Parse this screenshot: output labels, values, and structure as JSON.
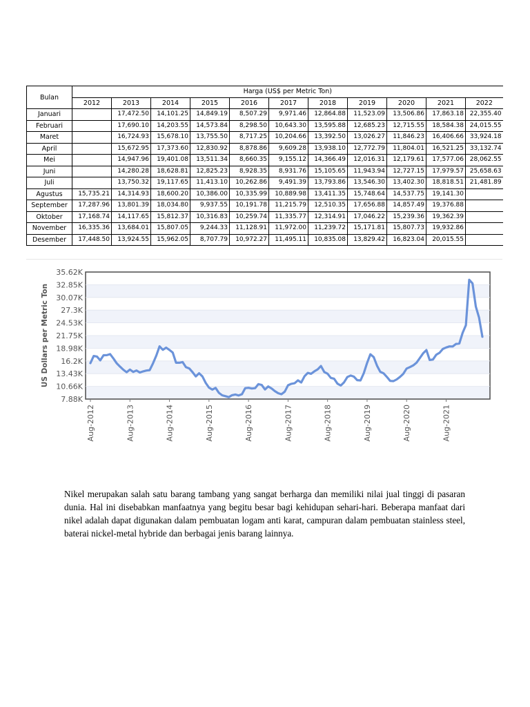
{
  "table": {
    "header_bulan": "Bulan",
    "header_price": "Harga (US$ per Metric Ton)",
    "years": [
      "2012",
      "2013",
      "2014",
      "2015",
      "2016",
      "2017",
      "2018",
      "2019",
      "2020",
      "2021",
      "2022"
    ],
    "rows": [
      {
        "month": "Januari",
        "values": [
          "",
          "17,472.50",
          "14,101.25",
          "14,849.19",
          "8,507.29",
          "9,971.46",
          "12,864.88",
          "11,523.09",
          "13,506.86",
          "17,863.18",
          "22,355.40"
        ]
      },
      {
        "month": "Februari",
        "values": [
          "",
          "17,690.10",
          "14,203.55",
          "14,573.84",
          "8,298.50",
          "10,643.30",
          "13,595.88",
          "12,685.23",
          "12,715.55",
          "18,584.38",
          "24,015.55"
        ]
      },
      {
        "month": "Maret",
        "values": [
          "",
          "16,724.93",
          "15,678.10",
          "13,755.50",
          "8,717.25",
          "10,204.66",
          "13,392.50",
          "13,026.27",
          "11,846.23",
          "16,406.66",
          "33,924.18"
        ]
      },
      {
        "month": "April",
        "values": [
          "",
          "15,672.95",
          "17,373.60",
          "12,830.92",
          "8,878.86",
          "9,609.28",
          "13,938.10",
          "12,772.79",
          "11,804.01",
          "16,521.25",
          "33,132.74"
        ]
      },
      {
        "month": "Mei",
        "values": [
          "",
          "14,947.96",
          "19,401.08",
          "13,511.34",
          "8,660.35",
          "9,155.12",
          "14,366.49",
          "12,016.31",
          "12,179.61",
          "17,577.06",
          "28,062.55"
        ]
      },
      {
        "month": "Juni",
        "values": [
          "",
          "14,280.28",
          "18,628.81",
          "12,825.23",
          "8,928.35",
          "8,931.76",
          "15,105.65",
          "11,943.94",
          "12,727.15",
          "17,979.57",
          "25,658.63"
        ]
      },
      {
        "month": "Juli",
        "values": [
          "",
          "13,750.32",
          "19,117.65",
          "11,413.10",
          "10,262.86",
          "9,491.39",
          "13,793.86",
          "13,546.30",
          "13,402.30",
          "18,818.51",
          "21,481.89"
        ]
      },
      {
        "month": "Agustus",
        "values": [
          "15,735.21",
          "14,314.93",
          "18,600.20",
          "10,386.00",
          "10,335.99",
          "10,889.98",
          "13,411.35",
          "15,748.64",
          "14,537.75",
          "19,141.30",
          ""
        ]
      },
      {
        "month": "September",
        "values": [
          "17,287.96",
          "13,801.39",
          "18,034.80",
          "9,937.55",
          "10,191.78",
          "11,215.79",
          "12,510.35",
          "17,656.88",
          "14,857.49",
          "19,376.88",
          ""
        ]
      },
      {
        "month": "Oktober",
        "values": [
          "17,168.74",
          "14,117.65",
          "15,812.37",
          "10,316.83",
          "10,259.74",
          "11,335.77",
          "12,314.91",
          "17,046.22",
          "15,239.36",
          "19,362.39",
          ""
        ]
      },
      {
        "month": "November",
        "values": [
          "16,335.36",
          "13,684.01",
          "15,807.05",
          "9,244.33",
          "11,128.91",
          "11,972.00",
          "11,239.72",
          "15,171.81",
          "15,807.73",
          "19,932.86",
          ""
        ]
      },
      {
        "month": "Desember",
        "values": [
          "17,448.50",
          "13,924.55",
          "15,962.05",
          "8,707.79",
          "10,972.27",
          "11,495.11",
          "10,835.08",
          "13,829.42",
          "16,823.04",
          "20,015.55",
          ""
        ]
      }
    ]
  },
  "chart_data": {
    "type": "line",
    "title": "",
    "xlabel": "",
    "ylabel": "US Dollars per Metric Ton",
    "ylim": [
      7.88,
      35.62
    ],
    "y_unit": "thousand US$ per metric ton",
    "yticks": [
      "35.62K",
      "32.85K",
      "30.07K",
      "27.3K",
      "24.53K",
      "21.75K",
      "18.98K",
      "16.2K",
      "13.43K",
      "10.66K",
      "7.88K"
    ],
    "xticks": [
      "Aug-2012",
      "Aug-2013",
      "Aug-2014",
      "Aug-2015",
      "Aug-2016",
      "Aug-2017",
      "Aug-2018",
      "Aug-2019",
      "Aug-2020",
      "Aug-2021"
    ],
    "grid": true,
    "legend": "none",
    "line_color": "#6b93da",
    "series": [
      {
        "values": [
          15.735,
          17.288,
          17.169,
          16.335,
          17.449,
          17.473,
          17.69,
          16.725,
          15.673,
          14.948,
          14.28,
          13.75,
          14.315,
          13.801,
          14.118,
          13.684,
          13.925,
          14.101,
          14.204,
          15.678,
          17.374,
          19.401,
          18.629,
          19.118,
          18.6,
          18.035,
          15.812,
          15.807,
          15.962,
          14.849,
          14.574,
          13.756,
          12.831,
          13.511,
          12.825,
          11.413,
          10.386,
          9.938,
          10.317,
          9.244,
          8.708,
          8.507,
          8.299,
          8.717,
          8.879,
          8.66,
          8.928,
          10.263,
          10.336,
          10.192,
          10.26,
          11.129,
          10.972,
          9.971,
          10.643,
          10.205,
          9.609,
          9.155,
          8.932,
          9.491,
          10.89,
          11.216,
          11.336,
          11.972,
          11.495,
          12.865,
          13.596,
          13.393,
          13.938,
          14.366,
          15.106,
          13.794,
          13.411,
          12.51,
          12.315,
          11.24,
          10.835,
          11.523,
          12.685,
          13.026,
          12.773,
          12.016,
          11.944,
          13.546,
          15.749,
          17.657,
          17.046,
          15.172,
          13.829,
          13.507,
          12.716,
          11.846,
          11.804,
          12.18,
          12.727,
          13.402,
          14.538,
          14.857,
          15.239,
          15.808,
          16.823,
          17.863,
          18.584,
          16.407,
          16.521,
          17.577,
          17.98,
          18.819,
          19.141,
          19.377,
          19.362,
          19.933,
          20.016,
          22.355,
          24.016,
          33.924,
          33.133,
          28.063,
          25.659,
          21.482
        ]
      }
    ]
  },
  "paragraph": "Nikel merupakan salah satu barang tambang yang sangat berharga dan memiliki nilai jual tinggi di pasaran dunia. Hal ini disebabkan manfaatnya yang begitu besar bagi kehidupan sehari-hari. Beberapa manfaat dari nikel adalah dapat digunakan dalam pembuatan logam anti karat, campuran dalam pembuatan stainless steel, baterai nickel-metal hybride dan berbagai jenis barang lainnya."
}
